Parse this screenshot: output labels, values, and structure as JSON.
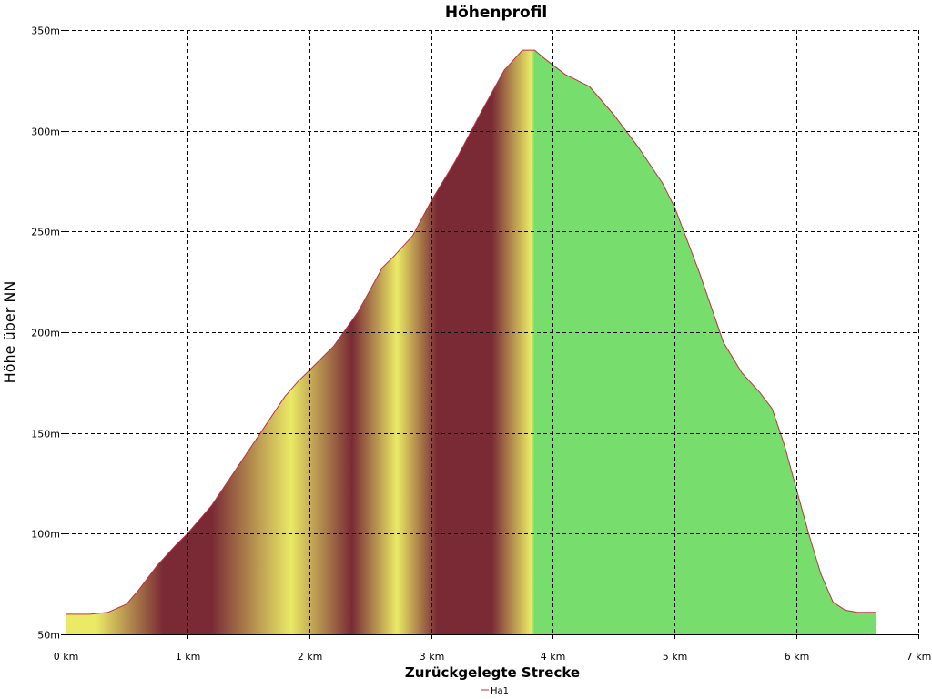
{
  "chart_data": {
    "type": "area",
    "title": "Höhenprofil",
    "xlabel": "Zurückgelegte Strecke",
    "ylabel": "Höhe über NN",
    "xlim": [
      0,
      7
    ],
    "ylim": [
      50,
      350
    ],
    "x_ticks": [
      {
        "value": 0,
        "label": "0 km"
      },
      {
        "value": 1,
        "label": "1 km"
      },
      {
        "value": 2,
        "label": "2 km"
      },
      {
        "value": 3,
        "label": "3 km"
      },
      {
        "value": 4,
        "label": "4 km"
      },
      {
        "value": 5,
        "label": "5 km"
      },
      {
        "value": 6,
        "label": "6 km"
      },
      {
        "value": 7,
        "label": "7 km"
      }
    ],
    "y_ticks": [
      {
        "value": 50,
        "label": "50m"
      },
      {
        "value": 100,
        "label": "100m"
      },
      {
        "value": 150,
        "label": "150m"
      },
      {
        "value": 200,
        "label": "200m"
      },
      {
        "value": 250,
        "label": "250m"
      },
      {
        "value": 300,
        "label": "300m"
      },
      {
        "value": 350,
        "label": "350m"
      }
    ],
    "grid": true,
    "legend_position": "bottom-center",
    "series": [
      {
        "name": "Ha1",
        "x": [
          0,
          0.2,
          0.35,
          0.5,
          0.6,
          0.75,
          0.9,
          1.0,
          1.2,
          1.4,
          1.6,
          1.8,
          1.9,
          2.0,
          2.2,
          2.4,
          2.6,
          2.7,
          2.85,
          3.0,
          3.2,
          3.4,
          3.6,
          3.75,
          3.85,
          3.95,
          4.1,
          4.3,
          4.5,
          4.7,
          4.9,
          5.0,
          5.2,
          5.4,
          5.55,
          5.7,
          5.8,
          5.9,
          6.0,
          6.1,
          6.2,
          6.3,
          6.4,
          6.5,
          6.65
        ],
        "y": [
          60,
          60,
          61,
          65,
          72,
          84,
          94,
          100,
          114,
          132,
          150,
          168,
          175,
          181,
          193,
          210,
          232,
          238,
          248,
          265,
          285,
          308,
          330,
          340,
          340,
          335,
          328,
          322,
          308,
          292,
          274,
          262,
          230,
          195,
          180,
          170,
          162,
          144,
          122,
          100,
          80,
          66,
          62,
          61,
          61
        ],
        "line_color": "#c03040",
        "fill_colors": {
          "climb_dark": "#7a2a35",
          "climb_light": "#eaea66",
          "descent": "#77dd6d"
        },
        "climb_end_km": 3.85
      }
    ]
  }
}
